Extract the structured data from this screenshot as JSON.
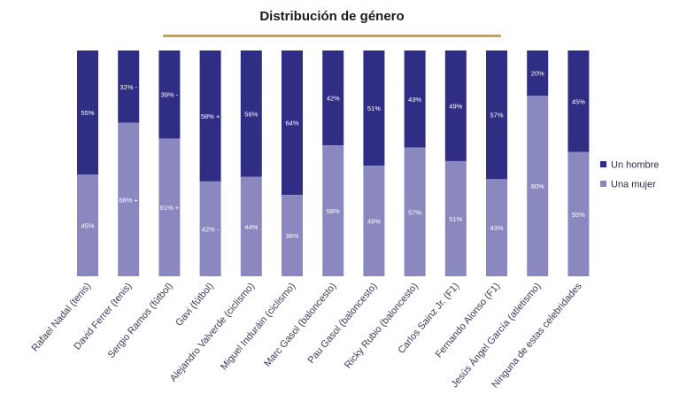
{
  "chart_data": {
    "type": "bar",
    "stacked": true,
    "title": "Distribución de género",
    "ylim": [
      0,
      100
    ],
    "grid": false,
    "legend_position": "right",
    "categories": [
      "Rafael Nadal (tenis)",
      "David Ferrer (tenis)",
      "Sergio Ramos (fútbol)",
      "Gavi (fútbol)",
      "Alejandro Valverde (ciclismo)",
      "Miguel Induráin (ciclismo)",
      "Marc Gasol (baloncesto)",
      "Pau Gasol (baloncesto)",
      "Ricky Rubio (baloncesto)",
      "Carlos Sainz Jr. (F1)",
      "Fernando Alonso (F1)",
      "Jesús Ángel García (atletismo)",
      "Ninguna de estas celebridades"
    ],
    "series": [
      {
        "name": "Una mujer",
        "color": "#8a88bf",
        "values": [
          45,
          68,
          61,
          42,
          44,
          36,
          58,
          49,
          57,
          51,
          43,
          80,
          55
        ],
        "labels": [
          "45%",
          "68% +",
          "61% +",
          "42% -",
          "44%",
          "36%",
          "58%",
          "49%",
          "57%",
          "51%",
          "43%",
          "80%",
          "55%"
        ]
      },
      {
        "name": "Un hombre",
        "color": "#302e84",
        "values": [
          55,
          32,
          39,
          58,
          56,
          64,
          42,
          51,
          43,
          49,
          57,
          20,
          45
        ],
        "labels": [
          "55%",
          "32% -",
          "39% -",
          "58% +",
          "56%",
          "64%",
          "42%",
          "51%",
          "43%",
          "49%",
          "57%",
          "20%",
          "45%"
        ]
      }
    ],
    "legend": [
      "Un hombre",
      "Una mujer"
    ]
  }
}
